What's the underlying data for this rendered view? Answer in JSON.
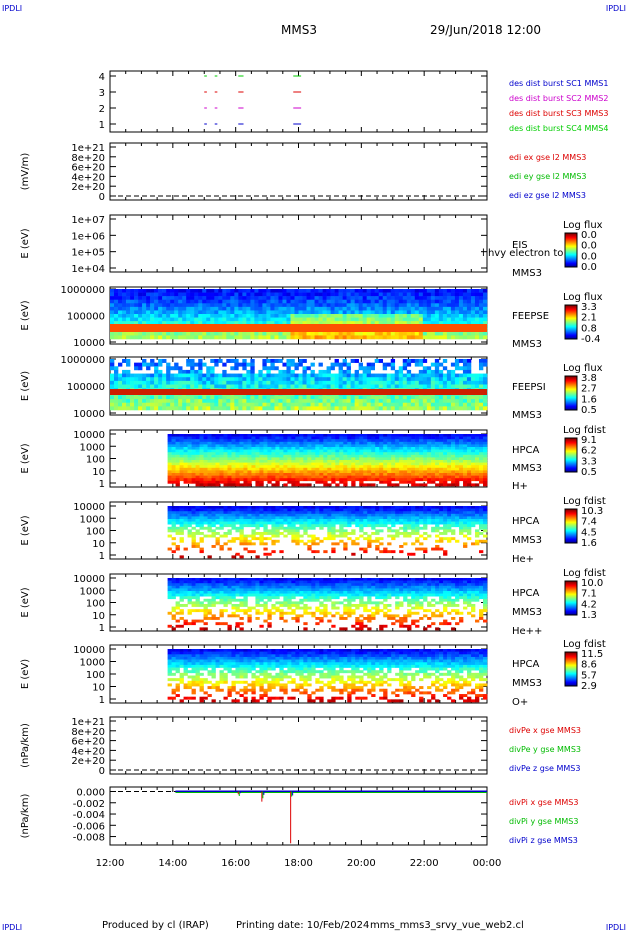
{
  "header": {
    "corner_label": "IPDLI",
    "spacecraft": "MMS3",
    "datetime": "29/Jun/2018 12:00"
  },
  "footer": {
    "produced_by": "Produced by cl (IRAP)",
    "printing_date": "Printing date: 10/Feb/2024",
    "filename": "mms_mms3_srvy_vue_web2.cl"
  },
  "colors": {
    "mms1": "#0000cc",
    "mms2": "#cc00cc",
    "mms3": "#dd0000",
    "mms4": "#00cc00",
    "x_comp": "#dd0000",
    "y_comp": "#00bb00",
    "z_comp": "#0000cc"
  },
  "chart_data": [
    {
      "id": "burst",
      "type": "scatter",
      "yticks": [
        "1",
        "2",
        "3",
        "4"
      ],
      "legend": [
        "des dist burst SC1 MMS1",
        "des dist burst SC2 MMS2",
        "des dist burst SC3 MMS3",
        "des dist burst SC4 MMS4"
      ],
      "ylim": [
        0.5,
        4.5
      ],
      "segments": [
        {
          "sc": 1,
          "start": "15:00",
          "end": "15:05"
        },
        {
          "sc": 1,
          "start": "15:20",
          "end": "15:25"
        },
        {
          "sc": 1,
          "start": "16:05",
          "end": "16:15"
        },
        {
          "sc": 1,
          "start": "17:50",
          "end": "18:00"
        },
        {
          "sc": 1,
          "start": "18:00",
          "end": "18:05"
        },
        {
          "sc": 2,
          "start": "15:00",
          "end": "15:05"
        },
        {
          "sc": 2,
          "start": "15:20",
          "end": "15:25"
        },
        {
          "sc": 2,
          "start": "16:05",
          "end": "16:15"
        },
        {
          "sc": 2,
          "start": "17:50",
          "end": "18:00"
        },
        {
          "sc": 2,
          "start": "18:00",
          "end": "18:05"
        },
        {
          "sc": 3,
          "start": "15:00",
          "end": "15:05"
        },
        {
          "sc": 3,
          "start": "15:20",
          "end": "15:25"
        },
        {
          "sc": 3,
          "start": "16:05",
          "end": "16:15"
        },
        {
          "sc": 3,
          "start": "17:50",
          "end": "18:00"
        },
        {
          "sc": 3,
          "start": "18:00",
          "end": "18:05"
        },
        {
          "sc": 4,
          "start": "15:00",
          "end": "15:05"
        },
        {
          "sc": 4,
          "start": "15:20",
          "end": "15:25"
        },
        {
          "sc": 4,
          "start": "16:05",
          "end": "16:15"
        },
        {
          "sc": 4,
          "start": "17:50",
          "end": "18:00"
        },
        {
          "sc": 4,
          "start": "18:00",
          "end": "18:05"
        }
      ]
    },
    {
      "id": "edi",
      "type": "line",
      "ylabel": "(mV/m)",
      "yticks": [
        "0",
        "2e+20",
        "4e+20",
        "6e+20",
        "8e+20",
        "1e+21"
      ],
      "legend": [
        "edi ex gse l2 MMS3",
        "edi ey gse l2 MMS3",
        "edi ez gse l2 MMS3"
      ],
      "ylim": [
        0,
        1e+21
      ]
    },
    {
      "id": "eis",
      "type": "heatmap",
      "ylabel": "E (eV)",
      "yticks": [
        "1e+04",
        "1e+05",
        "1e+06",
        "1e+07"
      ],
      "labels": [
        "EIS",
        "MMS3"
      ],
      "overlay_text": "l hvy electron to",
      "colorbar": {
        "title": "Log flux",
        "ticks": [
          "0.0",
          "0.0",
          "0.0",
          "0.0"
        ]
      }
    },
    {
      "id": "feepse",
      "type": "heatmap",
      "ylabel": "E (eV)",
      "yticks": [
        "10000",
        "100000",
        "1000000"
      ],
      "labels": [
        "FEEPSE",
        "MMS3"
      ],
      "colorbar": {
        "title": "Log flux",
        "ticks": [
          "3.3",
          "2.1",
          "0.8",
          "-0.4"
        ]
      }
    },
    {
      "id": "feepsi",
      "type": "heatmap",
      "ylabel": "E (eV)",
      "yticks": [
        "10000",
        "100000",
        "1000000"
      ],
      "labels": [
        "FEEPSI",
        "MMS3"
      ],
      "colorbar": {
        "title": "Log flux",
        "ticks": [
          "3.8",
          "2.7",
          "1.6",
          "0.5"
        ]
      }
    },
    {
      "id": "hpca_h",
      "type": "heatmap",
      "ylabel": "E (eV)",
      "yticks": [
        "1",
        "10",
        "100",
        "1000",
        "10000"
      ],
      "labels": [
        "HPCA",
        "MMS3",
        "H+"
      ],
      "data_start": "13:50",
      "colorbar": {
        "title": "Log fdist",
        "ticks": [
          "9.1",
          "6.2",
          "3.3",
          "0.5"
        ]
      }
    },
    {
      "id": "hpca_he",
      "type": "heatmap",
      "ylabel": "E (eV)",
      "yticks": [
        "1",
        "10",
        "100",
        "1000",
        "10000"
      ],
      "labels": [
        "HPCA",
        "MMS3",
        "He+"
      ],
      "data_start": "13:50",
      "colorbar": {
        "title": "Log fdist",
        "ticks": [
          "10.3",
          "7.4",
          "4.5",
          "1.6"
        ]
      }
    },
    {
      "id": "hpca_hepp",
      "type": "heatmap",
      "ylabel": "E (eV)",
      "yticks": [
        "1",
        "10",
        "100",
        "1000",
        "10000"
      ],
      "labels": [
        "HPCA",
        "MMS3",
        "He++"
      ],
      "data_start": "13:50",
      "colorbar": {
        "title": "Log fdist",
        "ticks": [
          "10.0",
          "7.1",
          "4.2",
          "1.3"
        ]
      }
    },
    {
      "id": "hpca_o",
      "type": "heatmap",
      "ylabel": "E (eV)",
      "yticks": [
        "1",
        "10",
        "100",
        "1000",
        "10000"
      ],
      "labels": [
        "HPCA",
        "MMS3",
        "O+"
      ],
      "data_start": "13:50",
      "colorbar": {
        "title": "Log fdist",
        "ticks": [
          "11.5",
          "8.6",
          "5.7",
          "2.9"
        ]
      }
    },
    {
      "id": "divpe",
      "type": "line",
      "ylabel": "(nPa/km)",
      "yticks": [
        "0",
        "2e+20",
        "4e+20",
        "6e+20",
        "8e+20",
        "1e+21"
      ],
      "legend": [
        "divPe x gse MMS3",
        "divPe y gse MMS3",
        "divPe z gse MMS3"
      ],
      "ylim": [
        0,
        1e+21
      ]
    },
    {
      "id": "divpi",
      "type": "line",
      "ylabel": "(nPa/km)",
      "yticks": [
        "-0.008",
        "-0.006",
        "-0.004",
        "-0.002",
        "0.000"
      ],
      "legend": [
        "divPi x gse MMS3",
        "divPi y gse MMS3",
        "divPi z gse MMS3"
      ],
      "ylim": [
        -0.0095,
        0.0008
      ],
      "data_start": "14:05",
      "spikes": [
        {
          "t": "16:05",
          "x": -0.0005,
          "y": -0.0008,
          "z": -0.0003
        },
        {
          "t": "16:50",
          "x": -0.0018,
          "y": -0.0012,
          "z": -0.0006
        },
        {
          "t": "17:45",
          "x": -0.0092,
          "y": -0.0009,
          "z": -0.0007
        }
      ]
    }
  ],
  "xaxis": {
    "ticks": [
      "12:00",
      "14:00",
      "16:00",
      "18:00",
      "20:00",
      "22:00",
      "00:00"
    ],
    "start": "12:00",
    "end": "00:00"
  }
}
